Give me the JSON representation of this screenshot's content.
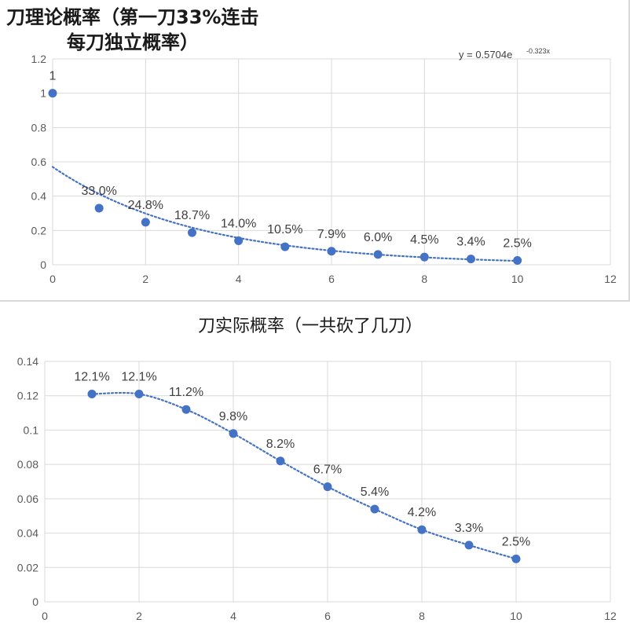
{
  "chart_data": [
    {
      "type": "scatter",
      "title_line1": "刀理论概率（第一刀33%连击",
      "title_line2": "每刀独立概率）",
      "xlabel": "",
      "ylabel": "",
      "xlim": [
        0,
        12
      ],
      "ylim": [
        0,
        1.2
      ],
      "x_ticks": [
        "0",
        "2",
        "4",
        "6",
        "8",
        "10",
        "12"
      ],
      "y_ticks": [
        "0",
        "0.2",
        "0.4",
        "0.6",
        "0.8",
        "1",
        "1.2"
      ],
      "grid": true,
      "series": [
        {
          "x": [
            0,
            1,
            2,
            3,
            4,
            5,
            6,
            7,
            8,
            9,
            10
          ],
          "y": [
            1,
            0.33,
            0.248,
            0.187,
            0.14,
            0.105,
            0.079,
            0.06,
            0.045,
            0.034,
            0.025
          ],
          "labels": [
            "1",
            "33.0%",
            "24.8%",
            "18.7%",
            "14.0%",
            "10.5%",
            "7.9%",
            "6.0%",
            "4.5%",
            "3.4%",
            "2.5%"
          ],
          "color": "#4472c4"
        }
      ],
      "trendline": {
        "type": "exponential",
        "a": 0.5704,
        "b": -0.323,
        "x_range": [
          0,
          10
        ],
        "equation_main": "y = 0.5704e",
        "equation_exp": "-0.323x",
        "color": "#4472c4"
      }
    },
    {
      "type": "scatter",
      "title": "刀实际概率（一共砍了几刀）",
      "xlabel": "",
      "ylabel": "",
      "xlim": [
        0,
        12
      ],
      "ylim": [
        0,
        0.14
      ],
      "x_ticks": [
        "0",
        "2",
        "4",
        "6",
        "8",
        "10",
        "12"
      ],
      "y_ticks": [
        "0",
        "0.02",
        "0.04",
        "0.06",
        "0.08",
        "0.1",
        "0.12",
        "0.14"
      ],
      "grid": true,
      "series": [
        {
          "x": [
            1,
            2,
            3,
            4,
            5,
            6,
            7,
            8,
            9,
            10
          ],
          "y": [
            0.121,
            0.121,
            0.112,
            0.098,
            0.082,
            0.067,
            0.054,
            0.042,
            0.033,
            0.025
          ],
          "labels": [
            "12.1%",
            "12.1%",
            "11.2%",
            "9.8%",
            "8.2%",
            "6.7%",
            "5.4%",
            "4.2%",
            "3.3%",
            "2.5%"
          ],
          "color": "#4472c4"
        }
      ],
      "trendline": {
        "type": "smooth",
        "color": "#4472c4"
      }
    }
  ]
}
